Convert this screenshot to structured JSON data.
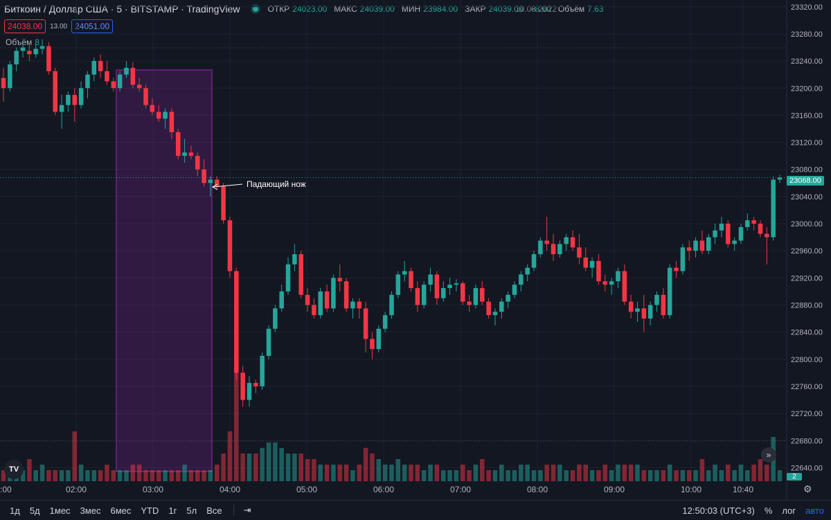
{
  "header": {
    "symbol": "Биткоин / Доллар США · 5 · BITSTAMP · TradingView",
    "ohlc": {
      "open_label": "ОТКР",
      "open": "24023.00",
      "high_label": "МАКС",
      "high": "24039.00",
      "low_label": "МИН",
      "low": "23984.00",
      "close_label": "ЗАКР",
      "close": "24039.00",
      "change": "+8.00",
      "date": "10.08.2022",
      "vol_label": "Объём",
      "vol": "7.63"
    }
  },
  "prices": {
    "sell": "24038.00",
    "spread": "13.00",
    "buy": "24051.00"
  },
  "volume_legend": {
    "label": "Объём",
    "value": "8"
  },
  "annotation": {
    "text": "Падающий нож"
  },
  "last_price": "23068.00",
  "volume_tag": "2",
  "price_axis": [
    "23320.00",
    "23280.00",
    "23240.00",
    "23200.00",
    "23160.00",
    "23120.00",
    "23080.00",
    "23040.00",
    "23000.00",
    "22960.00",
    "22920.00",
    "22880.00",
    "22840.00",
    "22800.00",
    "22760.00",
    "22720.00",
    "22680.00",
    "22640.00"
  ],
  "time_axis": [
    ":00",
    "02:00",
    "03:00",
    "04:00",
    "05:00",
    "06:00",
    "07:00",
    "08:00",
    "09:00",
    "10:00",
    "10:40"
  ],
  "toolbar": {
    "ranges": [
      "1д",
      "5д",
      "1мес",
      "3мес",
      "6мес",
      "YTD",
      "1г",
      "5л",
      "Все"
    ],
    "clock": "12:50:03 (UTC+3)",
    "percent": "%",
    "log": "лог",
    "auto": "авто"
  },
  "colors": {
    "up": "#26a69a",
    "down": "#f23645",
    "highlight": "#9c27b0",
    "background": "#131722"
  },
  "chart_data": {
    "type": "candlestick",
    "x_axis": "time",
    "y_range": [
      22620,
      23330
    ],
    "candles": [
      [
        23215,
        23230,
        23180,
        23200
      ],
      [
        23200,
        23240,
        23195,
        23235
      ],
      [
        23235,
        23260,
        23225,
        23255
      ],
      [
        23255,
        23270,
        23245,
        23260
      ],
      [
        23255,
        23265,
        23240,
        23250
      ],
      [
        23250,
        23265,
        23245,
        23258
      ],
      [
        23258,
        23272,
        23250,
        23262
      ],
      [
        23262,
        23268,
        23220,
        23225
      ],
      [
        23225,
        23230,
        23160,
        23165
      ],
      [
        23165,
        23190,
        23140,
        23175
      ],
      [
        23175,
        23195,
        23165,
        23190
      ],
      [
        23190,
        23200,
        23150,
        23175
      ],
      [
        23175,
        23210,
        23170,
        23200
      ],
      [
        23200,
        23225,
        23185,
        23220
      ],
      [
        23220,
        23245,
        23210,
        23240
      ],
      [
        23240,
        23250,
        23215,
        23225
      ],
      [
        23225,
        23240,
        23205,
        23210
      ],
      [
        23210,
        23215,
        23195,
        23200
      ],
      [
        23200,
        23225,
        23195,
        23220
      ],
      [
        23220,
        23240,
        23215,
        23230
      ],
      [
        23230,
        23238,
        23200,
        23205
      ],
      [
        23205,
        23215,
        23195,
        23200
      ],
      [
        23200,
        23205,
        23170,
        23175
      ],
      [
        23175,
        23185,
        23160,
        23165
      ],
      [
        23165,
        23175,
        23150,
        23155
      ],
      [
        23155,
        23170,
        23140,
        23165
      ],
      [
        23165,
        23170,
        23125,
        23135
      ],
      [
        23135,
        23140,
        23095,
        23100
      ],
      [
        23100,
        23125,
        23090,
        23105
      ],
      [
        23105,
        23115,
        23095,
        23100
      ],
      [
        23100,
        23105,
        23070,
        23080
      ],
      [
        23080,
        23095,
        23055,
        23060
      ],
      [
        23060,
        23070,
        23040,
        23065
      ],
      [
        23065,
        23070,
        23050,
        23055
      ],
      [
        23055,
        23060,
        23000,
        23005
      ],
      [
        23005,
        23010,
        22920,
        22930
      ],
      [
        22930,
        22935,
        22770,
        22780
      ],
      [
        22780,
        22790,
        22730,
        22740
      ],
      [
        22740,
        22775,
        22730,
        22765
      ],
      [
        22765,
        22770,
        22750,
        22760
      ],
      [
        22760,
        22810,
        22755,
        22805
      ],
      [
        22805,
        22850,
        22800,
        22845
      ],
      [
        22845,
        22880,
        22840,
        22875
      ],
      [
        22875,
        22910,
        22870,
        22900
      ],
      [
        22900,
        22950,
        22895,
        22940
      ],
      [
        22940,
        22970,
        22930,
        22955
      ],
      [
        22955,
        22960,
        22890,
        22895
      ],
      [
        22895,
        22905,
        22870,
        22880
      ],
      [
        22880,
        22890,
        22860,
        22865
      ],
      [
        22865,
        22905,
        22860,
        22900
      ],
      [
        22900,
        22910,
        22870,
        22875
      ],
      [
        22875,
        22925,
        22870,
        22920
      ],
      [
        22920,
        22940,
        22900,
        22915
      ],
      [
        22915,
        22920,
        22870,
        22875
      ],
      [
        22875,
        22890,
        22860,
        22885
      ],
      [
        22885,
        22890,
        22860,
        22875
      ],
      [
        22875,
        22885,
        22810,
        22830
      ],
      [
        22830,
        22840,
        22800,
        22815
      ],
      [
        22815,
        22850,
        22810,
        22845
      ],
      [
        22845,
        22870,
        22840,
        22865
      ],
      [
        22865,
        22900,
        22860,
        22895
      ],
      [
        22895,
        22930,
        22890,
        22925
      ],
      [
        22925,
        22945,
        22915,
        22930
      ],
      [
        22930,
        22935,
        22900,
        22905
      ],
      [
        22905,
        22915,
        22870,
        22880
      ],
      [
        22880,
        22915,
        22875,
        22910
      ],
      [
        22910,
        22935,
        22900,
        22925
      ],
      [
        22925,
        22930,
        22880,
        22890
      ],
      [
        22890,
        22915,
        22885,
        22905
      ],
      [
        22905,
        22920,
        22895,
        22910
      ],
      [
        22910,
        22918,
        22900,
        22912
      ],
      [
        22912,
        22915,
        22880,
        22885
      ],
      [
        22885,
        22895,
        22870,
        22880
      ],
      [
        22880,
        22910,
        22875,
        22905
      ],
      [
        22905,
        22915,
        22880,
        22885
      ],
      [
        22885,
        22890,
        22860,
        22865
      ],
      [
        22865,
        22875,
        22850,
        22870
      ],
      [
        22870,
        22890,
        22860,
        22885
      ],
      [
        22885,
        22900,
        22875,
        22895
      ],
      [
        22895,
        22915,
        22890,
        22910
      ],
      [
        22910,
        22930,
        22900,
        22925
      ],
      [
        22925,
        22940,
        22915,
        22935
      ],
      [
        22935,
        22960,
        22930,
        22955
      ],
      [
        22955,
        22980,
        22950,
        22975
      ],
      [
        22975,
        23010,
        22960,
        22970
      ],
      [
        22970,
        22985,
        22945,
        22955
      ],
      [
        22955,
        22975,
        22950,
        22970
      ],
      [
        22970,
        22985,
        22960,
        22980
      ],
      [
        22980,
        22990,
        22960,
        22965
      ],
      [
        22965,
        22985,
        22940,
        22950
      ],
      [
        22950,
        22965,
        22930,
        22935
      ],
      [
        22935,
        22950,
        22920,
        22945
      ],
      [
        22945,
        22955,
        22910,
        22915
      ],
      [
        22915,
        22925,
        22900,
        22910
      ],
      [
        22910,
        22920,
        22895,
        22915
      ],
      [
        22915,
        22935,
        22905,
        22930
      ],
      [
        22930,
        22940,
        22880,
        22885
      ],
      [
        22885,
        22895,
        22860,
        22870
      ],
      [
        22870,
        22885,
        22855,
        22875
      ],
      [
        22875,
        22895,
        22840,
        22860
      ],
      [
        22860,
        22885,
        22850,
        22880
      ],
      [
        22880,
        22900,
        22870,
        22895
      ],
      [
        22895,
        22905,
        22860,
        22865
      ],
      [
        22865,
        22940,
        22860,
        22935
      ],
      [
        22935,
        22945,
        22920,
        22930
      ],
      [
        22930,
        22970,
        22925,
        22965
      ],
      [
        22965,
        22975,
        22945,
        22960
      ],
      [
        22960,
        22980,
        22950,
        22975
      ],
      [
        22975,
        22990,
        22955,
        22960
      ],
      [
        22960,
        22985,
        22955,
        22980
      ],
      [
        22980,
        23000,
        22970,
        22990
      ],
      [
        22990,
        23010,
        22980,
        23000
      ],
      [
        23000,
        23005,
        22965,
        22970
      ],
      [
        22970,
        22980,
        22960,
        22975
      ],
      [
        22975,
        23000,
        22970,
        22995
      ],
      [
        22995,
        23015,
        22990,
        23005
      ],
      [
        23005,
        23010,
        22990,
        23000
      ],
      [
        23000,
        23005,
        22980,
        22985
      ],
      [
        22985,
        22995,
        22940,
        22980
      ],
      [
        22980,
        23070,
        22975,
        23065
      ],
      [
        23065,
        23072,
        23060,
        23068
      ]
    ],
    "volumes": [
      2,
      3,
      2,
      2,
      4,
      2,
      3,
      2,
      2,
      2,
      2,
      9,
      3,
      2,
      2,
      2,
      3,
      2,
      2,
      2,
      3,
      3,
      2,
      2,
      2,
      2,
      2,
      2,
      3,
      2,
      2,
      2,
      2,
      3,
      5,
      9,
      20,
      5,
      5,
      5,
      6,
      7,
      7,
      6,
      5,
      5,
      5,
      4,
      4,
      3,
      3,
      3,
      3,
      3,
      2,
      3,
      6,
      5,
      4,
      3,
      3,
      4,
      3,
      3,
      3,
      2,
      3,
      3,
      2,
      2,
      2,
      3,
      2,
      3,
      4,
      2,
      2,
      3,
      2,
      2,
      3,
      3,
      2,
      2,
      3,
      3,
      3,
      2,
      2,
      3,
      3,
      2,
      2,
      3,
      2,
      3,
      3,
      3,
      3,
      2,
      2,
      2,
      2,
      3,
      2,
      2,
      2,
      2,
      4,
      2,
      3,
      2,
      3,
      2,
      3,
      2,
      3,
      4,
      3,
      8,
      2
    ]
  }
}
